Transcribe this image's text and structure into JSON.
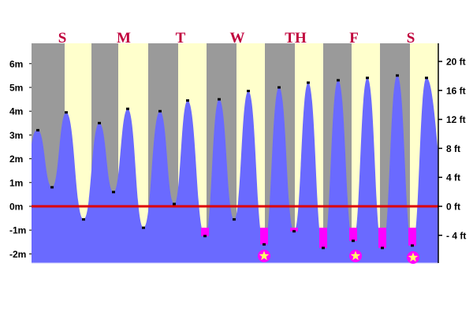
{
  "chart_data": {
    "type": "area",
    "title": "",
    "days": [
      "S",
      "M",
      "T",
      "W",
      "TH",
      "F",
      "S"
    ],
    "y_left": {
      "unit": "m",
      "ticks": [
        "6m",
        "5m",
        "4m",
        "3m",
        "2m",
        "1m",
        "0m",
        "-1m",
        "-2m"
      ],
      "range": [
        -2.4,
        6.9
      ]
    },
    "y_right": {
      "unit": "ft",
      "ticks": [
        "20 ft",
        "16 ft",
        "12 ft",
        "8 ft",
        "4 ft",
        "0 ft",
        "- 4 ft"
      ]
    },
    "zero_line": {
      "value": 0,
      "color": "#dd0000"
    },
    "tide_extremes_m": [
      3.2,
      0.8,
      3.95,
      -0.55,
      3.5,
      0.6,
      4.1,
      -0.9,
      4.0,
      0.1,
      4.45,
      -1.25,
      4.5,
      -0.55,
      4.85,
      -1.6,
      5.0,
      -1.05,
      5.2,
      -1.75,
      5.3,
      -1.45,
      5.4,
      -1.75,
      5.5,
      -1.65,
      5.4
    ],
    "negative_low_threshold_m": -0.9,
    "starred_lows_m": [
      -1.6,
      -1.45,
      -1.65
    ],
    "colors": {
      "water": "#6a6aff",
      "night": "#9a9a9a",
      "day": "#ffffcc",
      "highlight": "#ff00ff",
      "day_text": "#c0003c",
      "star": "#ffff66"
    }
  }
}
